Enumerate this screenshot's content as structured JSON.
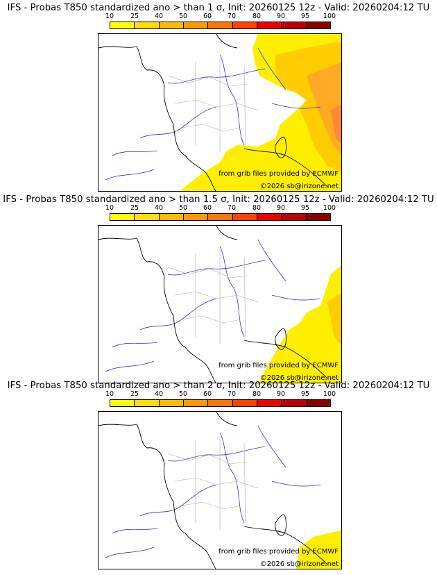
{
  "colors": {
    "scale": [
      "#ffff00",
      "#ffdd00",
      "#ffbb00",
      "#ff9900",
      "#ff7700",
      "#ff4400",
      "#ee0000",
      "#bb0000",
      "#880000",
      "#550000"
    ],
    "yellow": "#ffee00",
    "orange_light": "#ffcc00",
    "orange": "#ffaa22",
    "orange_dark": "#ff8833",
    "river": "#2b2bdd",
    "border": "#aaaaaa",
    "coast": "#000000"
  },
  "scale_labels": [
    "10",
    "25",
    "40",
    "50",
    "60",
    "70",
    "80",
    "90",
    "95",
    "100"
  ],
  "credits": {
    "data": "from grib files provided by ECMWF",
    "copyright": "©2026 sb@irizone.net"
  },
  "panels": [
    {
      "title": "IFS - Probas T850  standardized ano > than 1 σ, Init: 20260125 12z - Valid: 20260204:12 TU",
      "threshold": "1 σ"
    },
    {
      "title": "IFS - Probas T850  standardized ano > than 1.5 σ, Init: 20260125 12z - Valid: 20260204:12 TU",
      "threshold": "1.5 σ"
    },
    {
      "title": "IFS - Probas T850  standardized ano > than 2 σ, Init: 20260125 12z - Valid: 20260204:12 TU",
      "threshold": "2 σ"
    }
  ]
}
